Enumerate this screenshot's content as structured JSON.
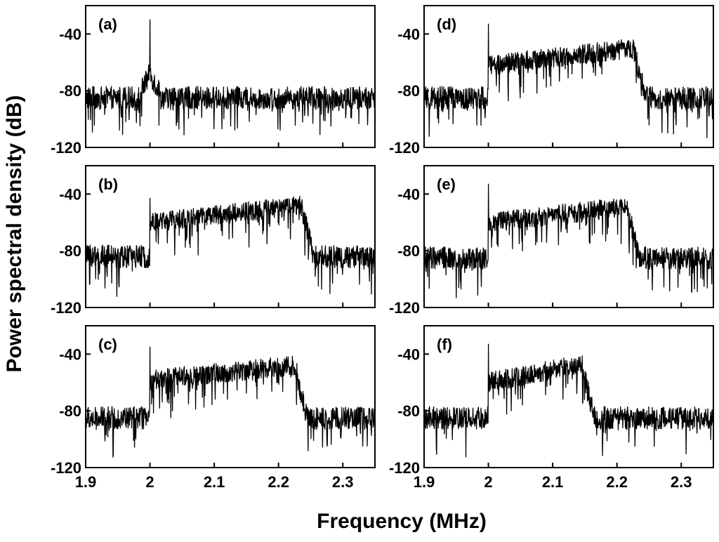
{
  "figure": {
    "xlabel": "Frequency (MHz)",
    "ylabel": "Power spectral density (dB)"
  },
  "chart_data": [
    {
      "type": "line",
      "panel_label": "(a)",
      "xlim": [
        1.9,
        2.35
      ],
      "ylim": [
        -120,
        -20
      ],
      "yticks": [
        -40,
        -80,
        -120
      ],
      "xticks": [],
      "grid": false,
      "series": [
        {
          "values_profile": {
            "noise_floor": -85,
            "carrier_x": 2.0,
            "carrier_peak": -30,
            "band": null
          }
        }
      ]
    },
    {
      "type": "line",
      "panel_label": "(b)",
      "xlim": [
        1.9,
        2.35
      ],
      "ylim": [
        -120,
        -20
      ],
      "yticks": [
        -40,
        -80,
        -120
      ],
      "xticks": [],
      "grid": false,
      "series": [
        {
          "values_profile": {
            "noise_floor": -84,
            "carrier_x": 2.0,
            "carrier_peak": -43,
            "band": {
              "start": 2.0,
              "end": 2.235,
              "level_start": -60,
              "level_end": -48
            }
          }
        }
      ]
    },
    {
      "type": "line",
      "panel_label": "(c)",
      "xlim": [
        1.9,
        2.35
      ],
      "ylim": [
        -120,
        -20
      ],
      "yticks": [
        -40,
        -80,
        -120
      ],
      "xticks": [
        1.9,
        2.0,
        2.1,
        2.2,
        2.3
      ],
      "xticklabels": [
        "1.9",
        "2",
        "2.1",
        "2.2",
        "2.3"
      ],
      "grid": false,
      "series": [
        {
          "values_profile": {
            "noise_floor": -85,
            "carrier_x": 2.0,
            "carrier_peak": -35,
            "band": {
              "start": 2.0,
              "end": 2.225,
              "level_start": -58,
              "level_end": -48
            }
          }
        }
      ]
    },
    {
      "type": "line",
      "panel_label": "(d)",
      "xlim": [
        1.9,
        2.35
      ],
      "ylim": [
        -120,
        -20
      ],
      "yticks": [
        -40,
        -80,
        -120
      ],
      "xticks": [],
      "grid": false,
      "series": [
        {
          "values_profile": {
            "noise_floor": -85,
            "carrier_x": 2.0,
            "carrier_peak": -33,
            "band": {
              "start": 2.0,
              "end": 2.225,
              "level_start": -62,
              "level_end": -50
            }
          }
        }
      ]
    },
    {
      "type": "line",
      "panel_label": "(e)",
      "xlim": [
        1.9,
        2.35
      ],
      "ylim": [
        -120,
        -20
      ],
      "yticks": [
        -40,
        -80,
        -120
      ],
      "xticks": [],
      "grid": false,
      "series": [
        {
          "values_profile": {
            "noise_floor": -85,
            "carrier_x": 2.0,
            "carrier_peak": -33,
            "band": {
              "start": 2.0,
              "end": 2.215,
              "level_start": -60,
              "level_end": -49
            }
          }
        }
      ]
    },
    {
      "type": "line",
      "panel_label": "(f)",
      "xlim": [
        1.9,
        2.35
      ],
      "ylim": [
        -120,
        -20
      ],
      "yticks": [
        -40,
        -80,
        -120
      ],
      "xticks": [
        1.9,
        2.0,
        2.1,
        2.2,
        2.3
      ],
      "xticklabels": [
        "1.9",
        "2",
        "2.1",
        "2.2",
        "2.3"
      ],
      "grid": false,
      "series": [
        {
          "values_profile": {
            "noise_floor": -85,
            "carrier_x": 2.0,
            "carrier_peak": -33,
            "band": {
              "start": 2.0,
              "end": 2.145,
              "level_start": -60,
              "level_end": -47
            }
          }
        }
      ]
    }
  ]
}
